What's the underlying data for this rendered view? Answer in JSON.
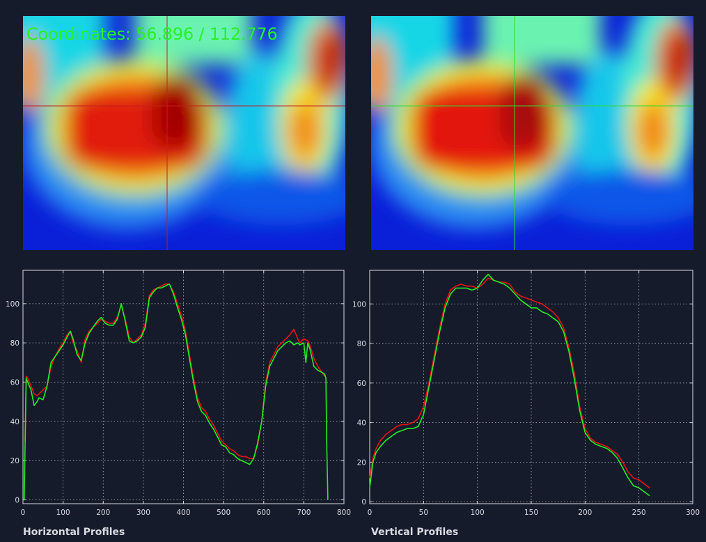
{
  "coordinates_readout": "Coordinates: 56.896 / 112.776",
  "colors": {
    "background": "#161b2b",
    "plot_frame": "#d9dbe3",
    "series_red": "#ee1111",
    "series_green": "#22ee22",
    "crosshair_left": "#c41e1e",
    "crosshair_right": "#2edb2e",
    "readout_text": "#28f028"
  },
  "icons": [
    "crosshair-marker"
  ],
  "chart_data": [
    {
      "type": "line",
      "title": "Horizontal Profiles",
      "xlabel": "",
      "ylabel": "",
      "xlim": [
        0,
        800
      ],
      "ylim": [
        -2,
        117
      ],
      "x_ticks": [
        "0",
        "100",
        "200",
        "300",
        "400",
        "500",
        "600",
        "700",
        "800"
      ],
      "y_ticks": [
        "0",
        "20",
        "40",
        "60",
        "80",
        "100"
      ],
      "grid": true,
      "series": [
        {
          "color": "red",
          "x": [
            5,
            8,
            12,
            20,
            28,
            35,
            40,
            50,
            60,
            70,
            80,
            90,
            100,
            110,
            118,
            125,
            135,
            145,
            155,
            165,
            175,
            185,
            195,
            205,
            215,
            225,
            235,
            245,
            255,
            265,
            275,
            285,
            295,
            305,
            315,
            325,
            335,
            345,
            355,
            365,
            375,
            385,
            395,
            405,
            415,
            425,
            435,
            445,
            455,
            465,
            475,
            485,
            495,
            505,
            515,
            525,
            535,
            545,
            555,
            565,
            575,
            585,
            595,
            605,
            615,
            625,
            635,
            645,
            655,
            665,
            675,
            685,
            690,
            700,
            710,
            715,
            725,
            735,
            745,
            752
          ],
          "y": [
            30,
            63,
            62,
            58,
            54,
            53,
            54,
            56,
            58,
            68,
            73,
            77,
            80,
            84,
            86,
            80,
            76,
            70,
            82,
            86,
            88,
            90,
            92,
            91,
            90,
            90,
            93,
            99,
            92,
            83,
            80,
            82,
            84,
            90,
            104,
            107,
            108,
            109,
            110,
            110,
            106,
            100,
            94,
            86,
            74,
            62,
            52,
            47,
            45,
            41,
            38,
            34,
            30,
            28,
            26,
            25,
            23,
            22,
            22,
            21,
            21,
            28,
            40,
            60,
            70,
            74,
            78,
            80,
            82,
            84,
            87,
            82,
            80,
            82,
            81,
            79,
            72,
            68,
            65,
            63
          ]
        },
        {
          "color": "green",
          "x": [
            3,
            5,
            8,
            12,
            20,
            28,
            35,
            40,
            50,
            60,
            70,
            80,
            90,
            100,
            110,
            118,
            125,
            135,
            145,
            155,
            165,
            175,
            185,
            195,
            205,
            215,
            225,
            235,
            245,
            255,
            265,
            275,
            285,
            295,
            305,
            315,
            325,
            335,
            345,
            355,
            365,
            375,
            385,
            395,
            405,
            415,
            425,
            435,
            445,
            455,
            465,
            475,
            485,
            495,
            505,
            515,
            525,
            535,
            545,
            555,
            565,
            575,
            585,
            595,
            605,
            615,
            625,
            635,
            645,
            655,
            665,
            675,
            685,
            690,
            700,
            705,
            710,
            715,
            725,
            735,
            745,
            752,
            755,
            757,
            760
          ],
          "y": [
            0,
            25,
            62,
            60,
            56,
            48,
            50,
            52,
            51,
            58,
            70,
            73,
            76,
            79,
            83,
            86,
            82,
            74,
            71,
            80,
            85,
            88,
            91,
            93,
            90,
            89,
            89,
            92,
            100,
            91,
            81,
            80,
            81,
            83,
            88,
            103,
            106,
            108,
            108,
            109,
            110,
            105,
            98,
            92,
            84,
            72,
            60,
            50,
            45,
            43,
            39,
            36,
            32,
            28,
            27,
            24,
            23,
            21,
            20,
            19,
            18,
            21,
            29,
            40,
            58,
            68,
            72,
            76,
            78,
            80,
            81,
            79,
            80,
            79,
            80,
            70,
            80,
            77,
            68,
            66,
            65,
            64,
            62,
            30,
            0
          ]
        }
      ]
    },
    {
      "type": "line",
      "title": "Vertical Profiles",
      "xlabel": "",
      "ylabel": "",
      "xlim": [
        0,
        300
      ],
      "ylim": [
        -1,
        117
      ],
      "x_ticks": [
        "0",
        "50",
        "100",
        "150",
        "200",
        "250",
        "300"
      ],
      "y_ticks": [
        "0",
        "20",
        "40",
        "60",
        "80",
        "100"
      ],
      "grid": true,
      "series": [
        {
          "color": "red",
          "x": [
            0,
            3,
            6,
            10,
            15,
            20,
            25,
            30,
            35,
            40,
            45,
            50,
            55,
            60,
            65,
            70,
            75,
            80,
            85,
            90,
            95,
            100,
            105,
            110,
            115,
            120,
            125,
            130,
            135,
            140,
            145,
            150,
            155,
            160,
            165,
            170,
            175,
            180,
            185,
            190,
            195,
            200,
            205,
            210,
            215,
            220,
            225,
            230,
            235,
            240,
            245,
            250,
            255,
            260
          ],
          "y": [
            12,
            22,
            27,
            31,
            34,
            36,
            38,
            39,
            39,
            40,
            42,
            48,
            60,
            74,
            88,
            100,
            107,
            109,
            110,
            109,
            109,
            108,
            110,
            113,
            112,
            111,
            111,
            110,
            106,
            104,
            103,
            102,
            101,
            100,
            98,
            96,
            93,
            88,
            78,
            65,
            48,
            37,
            32,
            30,
            29,
            28,
            26,
            24,
            20,
            15,
            12,
            11,
            9,
            7
          ]
        },
        {
          "color": "green",
          "x": [
            0,
            3,
            6,
            10,
            15,
            20,
            25,
            30,
            35,
            40,
            45,
            50,
            55,
            60,
            65,
            70,
            75,
            80,
            85,
            90,
            95,
            100,
            105,
            110,
            115,
            120,
            125,
            130,
            135,
            140,
            145,
            150,
            155,
            160,
            165,
            170,
            175,
            180,
            185,
            190,
            195,
            200,
            205,
            210,
            215,
            220,
            225,
            230,
            235,
            240,
            245,
            250,
            255,
            260
          ],
          "y": [
            7,
            20,
            25,
            28,
            31,
            33,
            35,
            36,
            37,
            37,
            38,
            44,
            58,
            72,
            86,
            98,
            105,
            108,
            108,
            108,
            107,
            108,
            112,
            115,
            112,
            111,
            110,
            108,
            105,
            102,
            100,
            98,
            98,
            96,
            95,
            93,
            91,
            86,
            76,
            62,
            46,
            35,
            31,
            29,
            28,
            27,
            25,
            22,
            17,
            12,
            8,
            7,
            5,
            3
          ]
        }
      ]
    }
  ]
}
